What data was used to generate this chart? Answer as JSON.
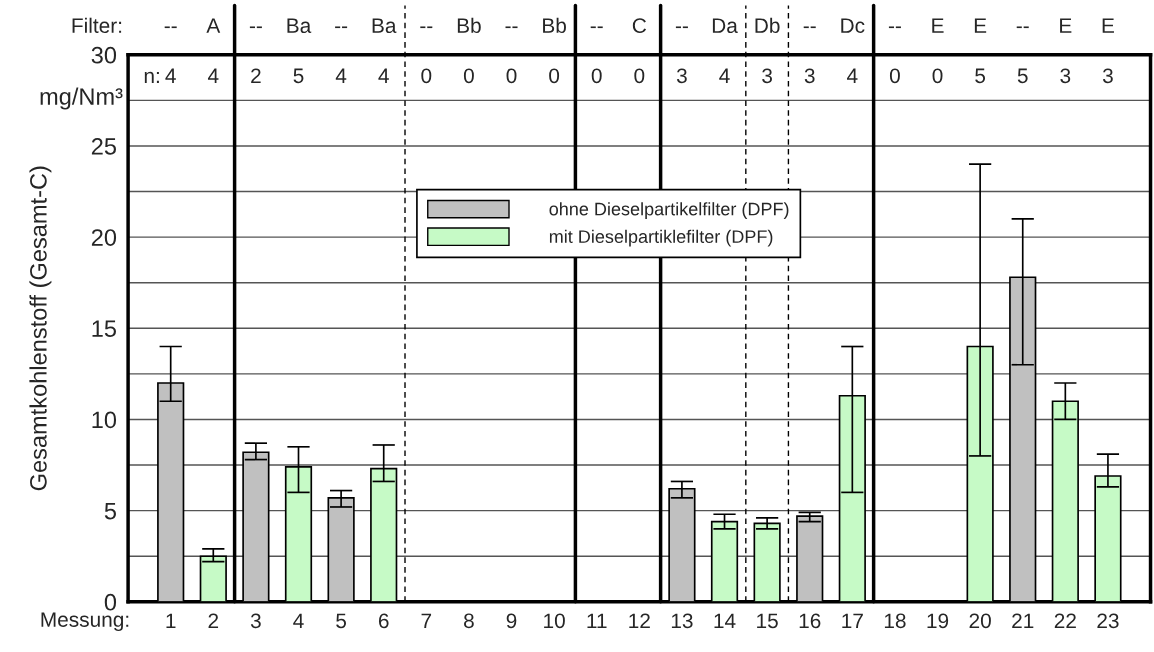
{
  "chart_data": {
    "type": "bar",
    "ylabel": "Gesamtkohlenstoff (Gesamt-C)",
    "xlabel": "Messung:",
    "x": [
      1,
      2,
      3,
      4,
      5,
      6,
      7,
      8,
      9,
      10,
      11,
      12,
      13,
      14,
      15,
      16,
      17,
      18,
      19,
      20,
      21,
      22,
      23
    ],
    "xlim": [
      0,
      24
    ],
    "xticks": [
      1,
      2,
      3,
      4,
      5,
      6,
      7,
      8,
      9,
      10,
      11,
      12,
      13,
      14,
      15,
      16,
      17,
      18,
      19,
      20,
      21,
      22,
      23
    ],
    "ylim": [
      0,
      30
    ],
    "yticks": [
      0,
      {
        "value": 2.5,
        "label": null
      },
      5,
      {
        "value": 7.5,
        "label": null
      },
      10,
      {
        "value": 12.5,
        "label": null
      },
      15,
      {
        "value": 17.5,
        "label": null
      },
      20,
      {
        "value": 22.5,
        "label": null
      },
      25,
      {
        "value": 27.5,
        "label": null
      },
      30
    ],
    "grid": "y",
    "legend": "top",
    "series": [
      {
        "name": "ohne Dieselpartikelfilter (DPF)",
        "color": "#c0c0c0",
        "values": [
          12,
          null,
          8.2,
          null,
          5.7,
          null,
          null,
          null,
          null,
          null,
          null,
          null,
          6.2,
          null,
          null,
          4.7,
          null,
          null,
          null,
          null,
          17.8,
          null,
          null
        ],
        "errors": [
          [
            11,
            14
          ],
          null,
          [
            7.8,
            8.7
          ],
          null,
          [
            5.2,
            6.1
          ],
          null,
          null,
          null,
          null,
          null,
          null,
          null,
          [
            5.7,
            6.6
          ],
          null,
          null,
          [
            4.4,
            4.9
          ],
          null,
          null,
          null,
          null,
          [
            13,
            21
          ],
          null,
          null
        ]
      },
      {
        "name": "mit Dieselpartiklefilter (DPF)",
        "color": "#c6fac6",
        "values": [
          null,
          2.5,
          null,
          7.4,
          null,
          7.3,
          null,
          null,
          null,
          null,
          null,
          null,
          null,
          4.4,
          4.3,
          null,
          11.3,
          null,
          null,
          14,
          null,
          11,
          6.9
        ],
        "errors": [
          null,
          [
            2.2,
            2.9
          ],
          null,
          [
            6,
            8.5
          ],
          null,
          [
            6.6,
            8.6
          ],
          null,
          null,
          null,
          null,
          null,
          null,
          null,
          [
            4,
            4.8
          ],
          [
            4,
            4.6
          ],
          null,
          [
            6,
            14
          ],
          null,
          null,
          [
            8,
            24
          ],
          null,
          [
            10,
            12
          ],
          [
            6.3,
            8.1
          ]
        ]
      }
    ],
    "ref_lines": [
      {
        "axis": "x",
        "value": 2.5,
        "line_style": "solid"
      },
      {
        "axis": "x",
        "value": 6.5,
        "line_style": "dashed"
      },
      {
        "axis": "x",
        "value": 10.5,
        "line_style": "solid"
      },
      {
        "axis": "x",
        "value": 12.5,
        "line_style": "solid"
      },
      {
        "axis": "x",
        "value": 14.5,
        "line_style": "dashed"
      },
      {
        "axis": "x",
        "value": 15.5,
        "line_style": "dashed"
      },
      {
        "axis": "x",
        "value": 17.5,
        "line_style": "solid"
      }
    ],
    "annotations": [
      "Filter:",
      "n:",
      "mg/Nm³",
      "--",
      "A",
      "--",
      "Ba",
      "--",
      "Ba",
      "--",
      "Bb",
      "--",
      "Bb",
      "--",
      "C",
      "--",
      "Da",
      "Db",
      "--",
      "Dc",
      "--",
      "E",
      "E",
      "--",
      "E",
      "E",
      "4",
      "4",
      "2",
      "5",
      "4",
      "4",
      "0",
      "0",
      "0",
      "0",
      "0",
      "0",
      "3",
      "4",
      "3",
      "3",
      "4",
      "0",
      "0",
      "5",
      "5",
      "3",
      "3"
    ]
  }
}
